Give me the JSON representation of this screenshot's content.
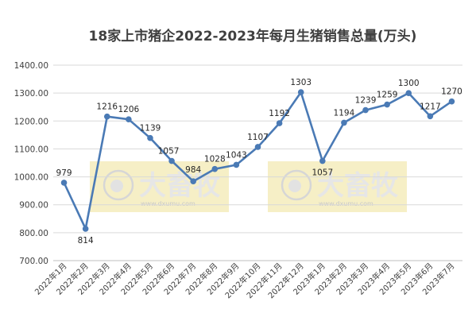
{
  "chart_data": {
    "type": "line",
    "title": "18家上市猪企2022-2023年每月生猪销售总量(万头)",
    "xlabel": "",
    "ylabel": "",
    "ylim": [
      700,
      1400
    ],
    "y_ticks": [
      "700.00",
      "800.00",
      "900.00",
      "1000.00",
      "1100.00",
      "1200.00",
      "1300.00",
      "1400.00"
    ],
    "grid": true,
    "legend": "none",
    "categories": [
      "2022年1月",
      "2022年2月",
      "2022年3月",
      "2022年4月",
      "2022年5月",
      "2022年6月",
      "2022年7月",
      "2022年8月",
      "2022年9月",
      "2022年10月",
      "2022年11月",
      "2022年12月",
      "2023年1月",
      "2023年2月",
      "2023年3月",
      "2023年4月",
      "2023年5月",
      "2023年6月",
      "2023年7月"
    ],
    "series": [
      {
        "values": [
          979,
          814,
          1216,
          1206,
          1139,
          1057,
          984,
          1028,
          1043,
          1107,
          1192,
          1303,
          1057,
          1194,
          1239,
          1259,
          1300,
          1217,
          1270
        ],
        "data_labels": [
          "979",
          "814",
          "1216",
          "1206",
          "1139",
          "1057",
          "984",
          "1028",
          "1043",
          "1107",
          "1192",
          "1303",
          "1057",
          "1194",
          "1239",
          "1259",
          "1300",
          "1217",
          "1270"
        ],
        "color": "#4a7ab5"
      }
    ],
    "watermark": {
      "text": "大畜牧",
      "url": "www.dxumu.com",
      "color": "#f6efc6"
    }
  }
}
